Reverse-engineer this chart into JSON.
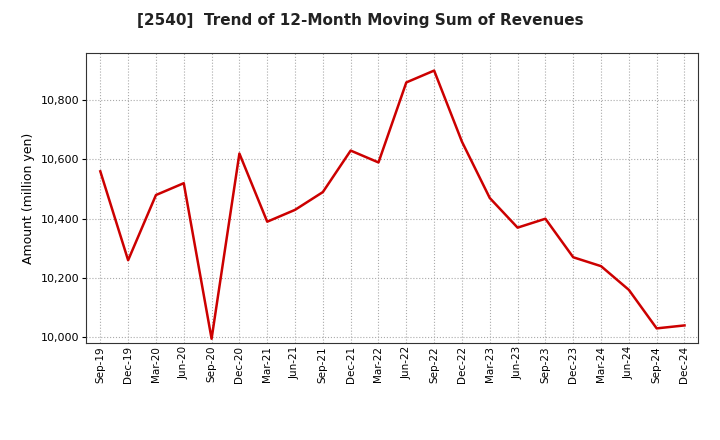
{
  "title": "[2540]  Trend of 12-Month Moving Sum of Revenues",
  "ylabel": "Amount (million yen)",
  "line_color": "#CC0000",
  "line_width": 1.8,
  "background_color": "#FFFFFF",
  "grid_color": "#AAAAAA",
  "ylim": [
    9980,
    10960
  ],
  "yticks": [
    10000,
    10200,
    10400,
    10600,
    10800
  ],
  "x_labels": [
    "Sep-19",
    "Dec-19",
    "Mar-20",
    "Jun-20",
    "Sep-20",
    "Dec-20",
    "Mar-21",
    "Jun-21",
    "Sep-21",
    "Dec-21",
    "Mar-22",
    "Jun-22",
    "Sep-22",
    "Dec-22",
    "Mar-23",
    "Jun-23",
    "Sep-23",
    "Dec-23",
    "Mar-24",
    "Jun-24",
    "Sep-24",
    "Dec-24"
  ],
  "values": [
    10560,
    10260,
    10480,
    10520,
    9995,
    10620,
    10390,
    10430,
    10490,
    10630,
    10590,
    10860,
    10900,
    10660,
    10470,
    10370,
    10400,
    10270,
    10240,
    10160,
    10030,
    10040
  ],
  "title_fontsize": 11,
  "ylabel_fontsize": 9,
  "xtick_fontsize": 7.5,
  "ytick_fontsize": 8
}
